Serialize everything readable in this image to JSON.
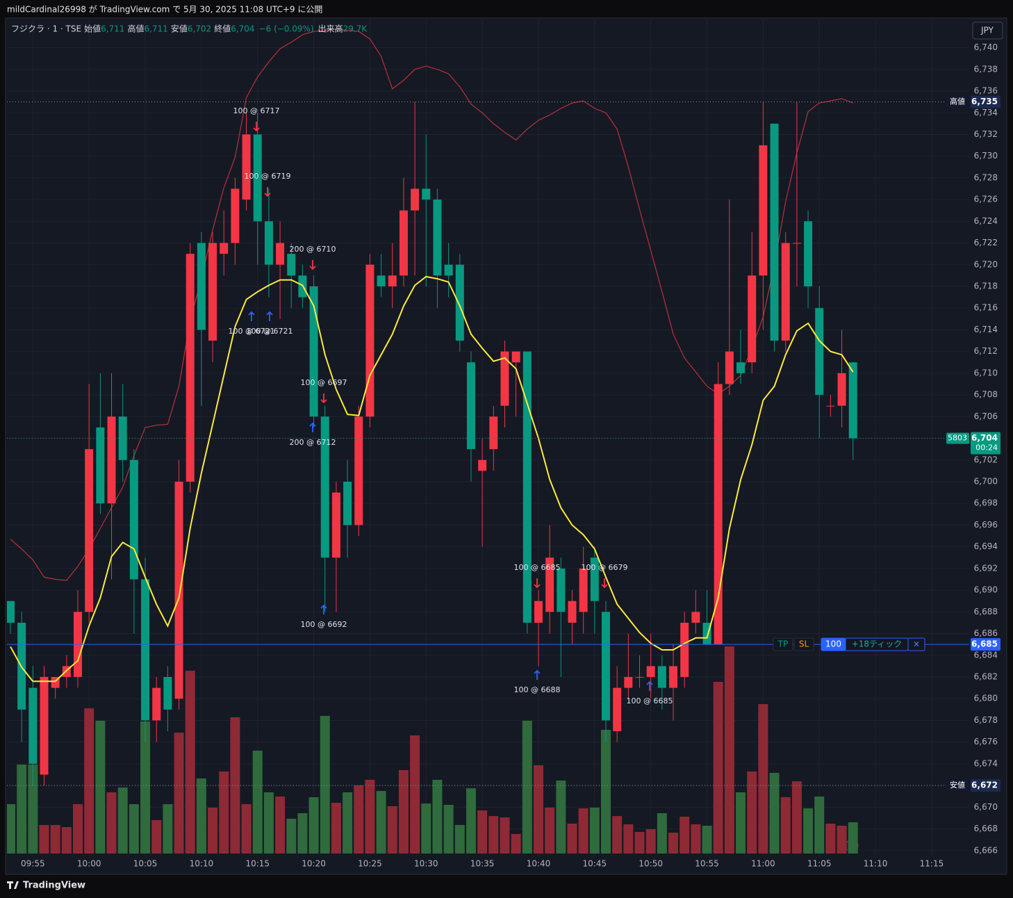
{
  "header": {
    "title": "mildCardinal26998 が TradingView.com で 5月 30, 2025 11:08 UTC+9 に公開",
    "footer": "TradingView",
    "currency": "JPY"
  },
  "chart_data": {
    "type": "candlestick",
    "symbol": "フジクラ · 1 · TSE",
    "legend": [
      {
        "label": "始値",
        "value": "6,711"
      },
      {
        "label": "高値",
        "value": "6,711"
      },
      {
        "label": "安値",
        "value": "6,702"
      },
      {
        "label": "終値",
        "value": "6,704"
      }
    ],
    "change": "−6 (−0.09%)",
    "volume_label": {
      "label": "出来高",
      "value": "29.7K"
    },
    "up_color": "#f23645",
    "down_color": "#089981",
    "volume_up_color": "#8e2a35",
    "volume_down_color": "#2f6b3c",
    "grid": true,
    "ylim": [
      6664,
      6742.6
    ],
    "yticks": [
      {
        "value": 6666,
        "label": "6,666"
      },
      {
        "value": 6668,
        "label": "6,668"
      },
      {
        "value": 6670,
        "label": "6,670"
      },
      {
        "value": 6672,
        "label": "6,672"
      },
      {
        "value": 6674,
        "label": "6,674"
      },
      {
        "value": 6676,
        "label": "6,676"
      },
      {
        "value": 6678,
        "label": "6,678"
      },
      {
        "value": 6680,
        "label": "6,680"
      },
      {
        "value": 6682,
        "label": "6,682"
      },
      {
        "value": 6684,
        "label": "6,684"
      },
      {
        "value": 6686,
        "label": "6,686"
      },
      {
        "value": 6688,
        "label": "6,688"
      },
      {
        "value": 6690,
        "label": "6,690"
      },
      {
        "value": 6692,
        "label": "6,692"
      },
      {
        "value": 6694,
        "label": "6,694"
      },
      {
        "value": 6696,
        "label": "6,696"
      },
      {
        "value": 6698,
        "label": "6,698"
      },
      {
        "value": 6700,
        "label": "6,700"
      },
      {
        "value": 6702,
        "label": "6,702"
      },
      {
        "value": 6704,
        "label": "6,704"
      },
      {
        "value": 6706,
        "label": "6,706"
      },
      {
        "value": 6708,
        "label": "6,708"
      },
      {
        "value": 6710,
        "label": "6,710"
      },
      {
        "value": 6712,
        "label": "6,712"
      },
      {
        "value": 6714,
        "label": "6,714"
      },
      {
        "value": 6716,
        "label": "6,716"
      },
      {
        "value": 6718,
        "label": "6,718"
      },
      {
        "value": 6720,
        "label": "6,720"
      },
      {
        "value": 6722,
        "label": "6,722"
      },
      {
        "value": 6724,
        "label": "6,724"
      },
      {
        "value": 6726,
        "label": "6,726"
      },
      {
        "value": 6728,
        "label": "6,728"
      },
      {
        "value": 6730,
        "label": "6,730"
      },
      {
        "value": 6732,
        "label": "6,732"
      },
      {
        "value": 6734,
        "label": "6,734"
      },
      {
        "value": 6736,
        "label": "6,736"
      },
      {
        "value": 6738,
        "label": "6,738"
      },
      {
        "value": 6740,
        "label": "6,740"
      }
    ],
    "categories": [
      null,
      null,
      "09:55",
      null,
      null,
      null,
      null,
      "10:00",
      null,
      null,
      null,
      null,
      "10:05",
      null,
      null,
      null,
      null,
      "10:10",
      null,
      null,
      null,
      null,
      "10:15",
      null,
      null,
      null,
      null,
      "10:20",
      null,
      null,
      null,
      null,
      "10:25",
      null,
      null,
      null,
      null,
      "10:30",
      null,
      null,
      null,
      null,
      "10:35",
      null,
      null,
      null,
      null,
      "10:40",
      null,
      null,
      null,
      null,
      "10:45",
      null,
      null,
      null,
      null,
      "10:50",
      null,
      null,
      null,
      null,
      "10:55",
      null,
      null,
      null,
      null,
      "11:00",
      null,
      null,
      null,
      null,
      "11:05",
      null,
      null,
      null,
      null,
      "11:10",
      null,
      null,
      null,
      null,
      "11:15"
    ],
    "open": [
      6689,
      6687,
      6681,
      6673,
      6681,
      6682,
      6682,
      6688,
      6705,
      6698,
      6706,
      6702,
      6691,
      6678,
      6682,
      6680,
      6700,
      6722,
      6713,
      6721,
      6722,
      6726,
      6732,
      6724,
      6720,
      6721,
      6719,
      6718,
      6706,
      6693,
      6700,
      6696,
      6706,
      6719,
      6718,
      6719,
      6725,
      6727,
      6726,
      6720,
      6720,
      6711,
      6701,
      6703,
      6707,
      6711,
      6712,
      6687,
      6688,
      6692,
      6687,
      6688,
      6693,
      6688,
      6677,
      6681,
      6682,
      6682,
      6683,
      6681,
      6682,
      6687,
      6687,
      6685,
      6709,
      6711,
      6711,
      6719,
      6733,
      6713,
      6722,
      6724,
      6716,
      6707,
      6707,
      6711,
      null,
      null,
      null,
      null,
      null,
      null,
      null
    ],
    "high": [
      6689,
      6688,
      6683,
      6683,
      6682,
      6684,
      6690,
      6709,
      6710,
      6710,
      6709,
      6703,
      6693,
      6682,
      6683,
      6702,
      6722,
      6723,
      6723,
      6725,
      6728,
      6734,
      6734,
      6727,
      6724,
      6722,
      6720,
      6719,
      6707,
      6700,
      6702,
      6707,
      6721,
      6721,
      6722,
      6728,
      6735,
      6732,
      6727,
      6722,
      6721,
      6712,
      6704,
      6707,
      6713,
      6712,
      6712,
      6690,
      6696,
      6693,
      6690,
      6694,
      6694,
      6689,
      6683,
      6686,
      6684,
      6686,
      6684,
      6685,
      6688,
      6690,
      6690,
      6711,
      6726,
      6714,
      6723,
      6735,
      6733,
      6723,
      6735,
      6725,
      6718,
      6708,
      6714,
      6711,
      null,
      null,
      null,
      null,
      null,
      null,
      null
    ],
    "low": [
      6686,
      6676,
      6672,
      6672,
      6680,
      6681,
      6681,
      6687,
      6697,
      6691,
      6700,
      6686,
      6676,
      6676,
      6677,
      6679,
      6699,
      6707,
      6711,
      6719,
      6720,
      6725,
      6720,
      6717,
      6715,
      6716,
      6716,
      6705,
      6688,
      6688,
      6693,
      6695,
      6705,
      6717,
      6716,
      6718,
      6719,
      6718,
      6716,
      6717,
      6712,
      6700,
      6694,
      6701,
      6705,
      6706,
      6686,
      6683,
      6686,
      6682,
      6685,
      6686,
      6686,
      6676,
      6676,
      6680,
      6681,
      6680,
      6679,
      6678,
      6681,
      6686,
      6685,
      6685,
      6708,
      6709,
      6710,
      6714,
      6712,
      6712,
      6718,
      6716,
      6704,
      6706,
      6705,
      6702,
      null,
      null,
      null,
      null,
      null,
      null,
      null
    ],
    "close": [
      6687,
      6679,
      6674,
      6682,
      6682,
      6683,
      6688,
      6703,
      6698,
      6706,
      6702,
      6691,
      6678,
      6681,
      6679,
      6700,
      6721,
      6714,
      6722,
      6722,
      6727,
      6732,
      6724,
      6720,
      6722,
      6719,
      6717,
      6706,
      6693,
      6699,
      6696,
      6706,
      6720,
      6718,
      6719,
      6725,
      6727,
      6726,
      6719,
      6719,
      6713,
      6703,
      6702,
      6706,
      6712,
      6712,
      6687,
      6689,
      6693,
      6688,
      6689,
      6692,
      6689,
      6678,
      6681,
      6682,
      6682,
      6683,
      6681,
      6683,
      6687,
      6688,
      6685,
      6709,
      6712,
      6710,
      6719,
      6731,
      6713,
      6722,
      6722,
      6718,
      6708,
      6707,
      6710,
      6704,
      null,
      null,
      null,
      null,
      null,
      null,
      null
    ],
    "volume": [
      46.9,
      84.5,
      84.5,
      27.1,
      27.1,
      25.1,
      46.9,
      137.9,
      126.1,
      58.1,
      62.7,
      46.9,
      125.4,
      31.7,
      46.9,
      114.8,
      173.6,
      71.3,
      43.6,
      77.9,
      129.4,
      46.9,
      97.7,
      58.1,
      54.1,
      33.0,
      38.3,
      53.5,
      130.7,
      48.2,
      58.1,
      64.7,
      70.0,
      59.4,
      44.9,
      79.2,
      112.2,
      47.5,
      70.0,
      46.2,
      27.1,
      62.0,
      40.9,
      35.6,
      34.3,
      18.5,
      126.1,
      83.8,
      43.6,
      69.3,
      28.4,
      42.9,
      43.6,
      117.5,
      35.6,
      27.7,
      20.5,
      23.1,
      38.3,
      19.8,
      35.0,
      27.7,
      26.4,
      163.0,
      196.7,
      58.1,
      77.9,
      141.9,
      76.6,
      53.5,
      68.6,
      42.9,
      54.1,
      28.4,
      26.4,
      29.7,
      null,
      null,
      null,
      null,
      null,
      null,
      null
    ],
    "lines": [
      {
        "color": "#ffeb3b",
        "values": [
          6684.8,
          6682.9,
          6681.6,
          6681.6,
          6681.6,
          6682.6,
          6683.5,
          6686.7,
          6689.3,
          6693.1,
          6694.4,
          6693.8,
          6691.2,
          6688.7,
          6686.7,
          6689.3,
          6695.7,
          6700.8,
          6705.3,
          6709.8,
          6714.3,
          6716.8,
          6717.5,
          6718.1,
          6718.6,
          6718.6,
          6718.1,
          6716.2,
          6711.7,
          6708.5,
          6706.2,
          6706.1,
          6709.8,
          6711.7,
          6713.6,
          6716.2,
          6718.1,
          6718.9,
          6718.7,
          6718.4,
          6716.2,
          6713.6,
          6712.3,
          6711.1,
          6711.4,
          6710.4,
          6707.2,
          6704.0,
          6700.2,
          6697.6,
          6696.0,
          6695.1,
          6693.8,
          6691.2,
          6688.7,
          6687.4,
          6686.1,
          6685.1,
          6684.5,
          6684.5,
          6685.1,
          6685.6,
          6685.6,
          6689.3,
          6695.7,
          6700.2,
          6703.4,
          6707.5,
          6708.8,
          6711.7,
          6713.9,
          6714.6,
          6713.0,
          6712.0,
          6711.7,
          6710.1,
          null,
          null,
          null,
          null,
          null,
          null,
          null
        ]
      },
      {
        "color": "#b8323d",
        "values": [
          6694.7,
          6693.8,
          6692.8,
          6691.2,
          6691.0,
          6690.9,
          6692.2,
          6693.8,
          6695.7,
          6697.6,
          6699.5,
          6702.4,
          6705.0,
          6705.2,
          6705.3,
          6708.8,
          6714.9,
          6718.7,
          6723.2,
          6727.1,
          6729.9,
          6735.4,
          6737.3,
          6738.7,
          6739.9,
          6740.5,
          6741.2,
          6741.5,
          6741.6,
          6741.7,
          6741.6,
          6741.5,
          6740.8,
          6739.2,
          6736.2,
          6737.0,
          6738.0,
          6738.3,
          6738.0,
          6737.6,
          6736.4,
          6734.8,
          6734.0,
          6733.0,
          6732.2,
          6731.5,
          6732.5,
          6733.3,
          6733.8,
          6734.4,
          6734.9,
          6735.1,
          6734.4,
          6734.0,
          6732.5,
          6729.0,
          6725.1,
          6721.3,
          6717.5,
          6713.6,
          6711.4,
          6710.1,
          6708.8,
          6708.1,
          6708.8,
          6709.8,
          6712.3,
          6715.2,
          6720.0,
          6725.8,
          6730.3,
          6734.1,
          6734.9,
          6735.1,
          6735.3,
          6734.9,
          null,
          null,
          null,
          null,
          null,
          null,
          null
        ]
      }
    ],
    "price_lines": [
      {
        "name": "高値",
        "value": 6735,
        "value_label": "6,735",
        "color": "#8a8f9c"
      },
      {
        "name": "安値",
        "value": 6672,
        "value_label": "6,672",
        "color": "#8a8f9c"
      },
      {
        "name": "5803",
        "value": 6704,
        "value_label": "6,704",
        "countdown": "00:24",
        "color": "#089981"
      }
    ],
    "position": {
      "value": 6685,
      "value_label": "6,685",
      "tp": "TP",
      "sl": "SL",
      "qty": "100",
      "pnl": "+18ティック",
      "close": "×",
      "color": "#2962ff"
    },
    "annotations": [
      "100 @ 6717",
      "100 @ 6719",
      "200 @ 6710",
      "100 @ 6721",
      "100 @ 6721",
      "100 @ 6697",
      "200 @ 6712",
      "100 @ 6692",
      "100 @ 6685",
      "100 @ 6679",
      "100 @ 6688",
      "100 @ 6685"
    ]
  }
}
